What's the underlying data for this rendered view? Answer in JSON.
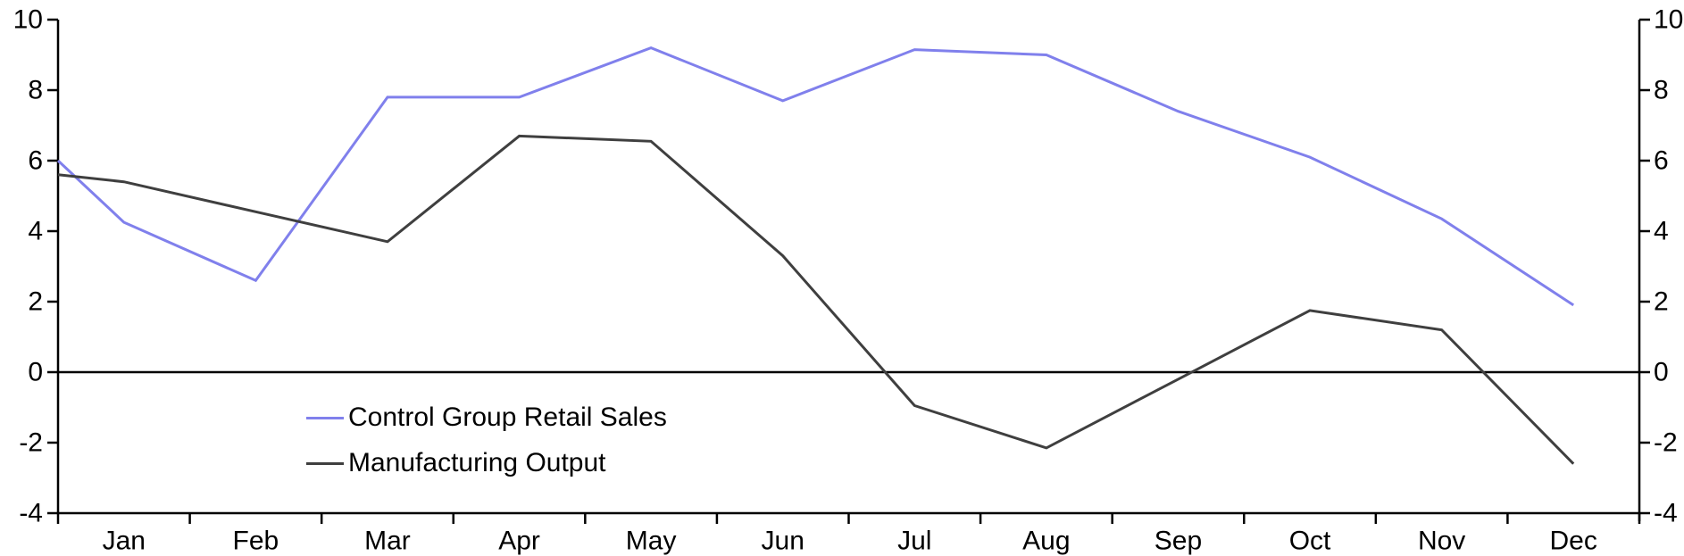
{
  "figure": {
    "background": "#FFFFFF",
    "axis_color": "#000000"
  },
  "chart_data": {
    "type": "line",
    "title": "",
    "xlabel": "",
    "ylabel": "",
    "grid": false,
    "legend_position": "inside-lower-left",
    "categories": [
      "Jan",
      "Feb",
      "Mar",
      "Apr",
      "May",
      "Jun",
      "Jul",
      "Aug",
      "Sep",
      "Oct",
      "Nov",
      "Dec"
    ],
    "series": [
      {
        "name": "Control Group Retail Sales",
        "color": "#8080EC",
        "left_edge_start": 6.0,
        "values": [
          4.25,
          2.6,
          7.8,
          7.8,
          9.2,
          7.7,
          9.15,
          9.0,
          7.4,
          6.1,
          4.35,
          1.9
        ]
      },
      {
        "name": "Manufacturing Output",
        "color": "#3F3F3F",
        "left_edge_start": 5.6,
        "values": [
          5.4,
          4.55,
          3.7,
          6.7,
          6.55,
          3.3,
          -0.95,
          -2.15,
          -0.2,
          1.75,
          1.2,
          -2.6
        ]
      }
    ],
    "y_axis_left": {
      "min": -4,
      "max": 10,
      "step": 2,
      "ticks": [
        10,
        8,
        6,
        4,
        2,
        0,
        -2,
        -4
      ]
    },
    "y_axis_right": {
      "min": -4,
      "max": 10,
      "step": 2,
      "ticks": [
        10,
        8,
        6,
        4,
        2,
        0,
        -2,
        -4
      ]
    },
    "x_axis": {
      "tick_placement": "between-categories",
      "baseline_value": -4
    },
    "zero_line": true
  }
}
